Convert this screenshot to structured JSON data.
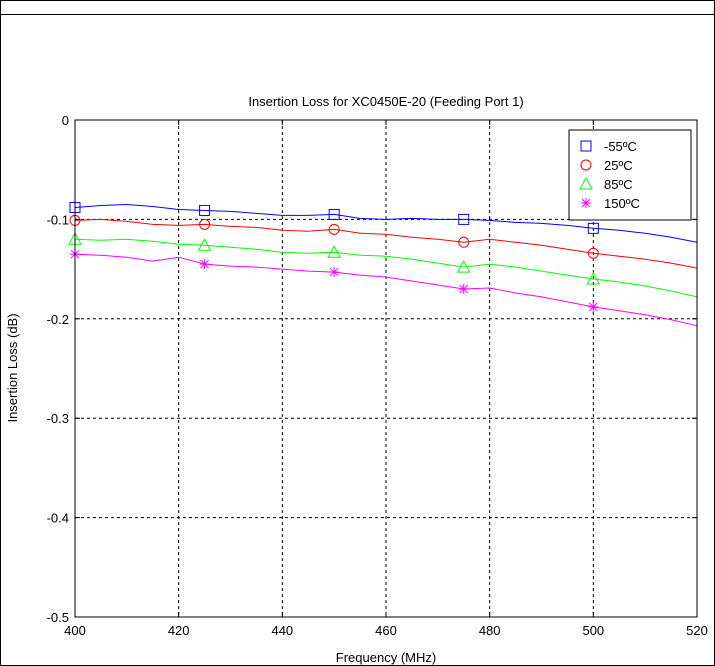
{
  "chart_data": {
    "type": "line",
    "title": "Insertion Loss for XC0450E-20 (Feeding Port 1)",
    "xlabel": "Frequency (MHz)",
    "ylabel": "Insertion Loss (dB)",
    "xlim": [
      400,
      520
    ],
    "ylim": [
      -0.5,
      0
    ],
    "xticks": [
      400,
      420,
      440,
      460,
      480,
      500,
      520
    ],
    "yticks": [
      0,
      -0.1,
      -0.2,
      -0.3,
      -0.4,
      -0.5
    ],
    "xtick_labels": [
      "400",
      "420",
      "440",
      "460",
      "480",
      "500",
      "520"
    ],
    "ytick_labels": [
      "0",
      "-0.1",
      "-0.2",
      "-0.3",
      "-0.4",
      "-0.5"
    ],
    "grid": true,
    "legend_position": "top-right",
    "x": [
      400,
      405,
      410,
      415,
      420,
      425,
      430,
      435,
      440,
      445,
      450,
      455,
      460,
      465,
      470,
      475,
      480,
      485,
      490,
      495,
      500,
      505,
      510,
      515,
      520
    ],
    "marker_x": [
      400,
      425,
      450,
      475,
      500
    ],
    "series": [
      {
        "name": "-55ºC",
        "color": "#0000ff",
        "marker": "square",
        "values": [
          -0.088,
          -0.086,
          -0.085,
          -0.087,
          -0.09,
          -0.091,
          -0.092,
          -0.094,
          -0.096,
          -0.096,
          -0.095,
          -0.099,
          -0.1,
          -0.099,
          -0.1,
          -0.1,
          -0.101,
          -0.103,
          -0.104,
          -0.106,
          -0.109,
          -0.111,
          -0.114,
          -0.118,
          -0.123
        ]
      },
      {
        "name": "25ºC",
        "color": "#ff0000",
        "marker": "circle",
        "values": [
          -0.101,
          -0.1,
          -0.102,
          -0.105,
          -0.106,
          -0.105,
          -0.107,
          -0.108,
          -0.111,
          -0.112,
          -0.11,
          -0.114,
          -0.115,
          -0.118,
          -0.12,
          -0.123,
          -0.12,
          -0.123,
          -0.126,
          -0.13,
          -0.134,
          -0.137,
          -0.14,
          -0.144,
          -0.149
        ]
      },
      {
        "name": "85ºC",
        "color": "#00ff00",
        "marker": "triangle",
        "values": [
          -0.12,
          -0.121,
          -0.12,
          -0.122,
          -0.125,
          -0.126,
          -0.128,
          -0.13,
          -0.133,
          -0.134,
          -0.133,
          -0.136,
          -0.137,
          -0.14,
          -0.144,
          -0.148,
          -0.145,
          -0.148,
          -0.152,
          -0.156,
          -0.16,
          -0.163,
          -0.167,
          -0.172,
          -0.178
        ]
      },
      {
        "name": "150ºC",
        "color": "#ff00ff",
        "marker": "asterisk",
        "values": [
          -0.135,
          -0.136,
          -0.138,
          -0.142,
          -0.138,
          -0.145,
          -0.147,
          -0.148,
          -0.15,
          -0.152,
          -0.153,
          -0.156,
          -0.158,
          -0.162,
          -0.166,
          -0.17,
          -0.169,
          -0.174,
          -0.178,
          -0.183,
          -0.188,
          -0.192,
          -0.196,
          -0.201,
          -0.207
        ]
      }
    ]
  }
}
